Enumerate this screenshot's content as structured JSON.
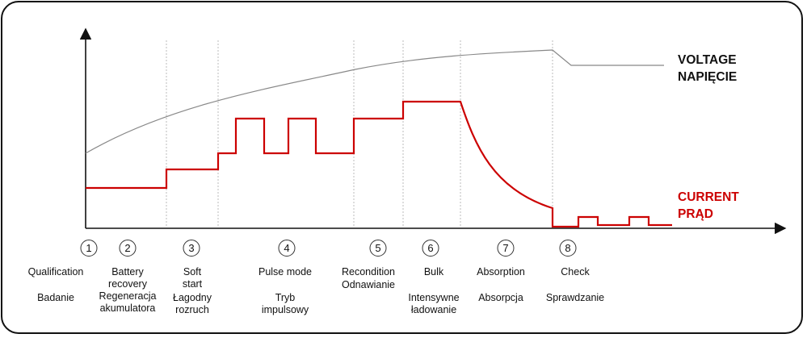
{
  "legend": {
    "voltage": {
      "line1": "VOLTAGE",
      "line2": "NAPIĘCIE",
      "color": "#111111"
    },
    "current": {
      "line1": "CURRENT",
      "line2": "PRĄD",
      "color": "#cc0000"
    }
  },
  "colors": {
    "voltage_curve": "#888888",
    "current_curve": "#cc0000",
    "axis": "#111111",
    "divider": "#bbbbbb"
  },
  "stages": [
    {
      "num": "1",
      "en": "Qualification",
      "pl": "Badanie"
    },
    {
      "num": "2",
      "en": "Battery\nrecovery",
      "pl": "Regeneracja\nakumulatora"
    },
    {
      "num": "3",
      "en": "Soft\nstart",
      "pl": "Łagodny\nrozruch"
    },
    {
      "num": "4",
      "en": "Pulse mode",
      "pl": "Tryb\nimpulsowy"
    },
    {
      "num": "5",
      "en": "Recondition",
      "pl": "Odnawianie"
    },
    {
      "num": "6",
      "en": "Bulk",
      "pl": "Intensywne\nładowanie"
    },
    {
      "num": "7",
      "en": "Absorption",
      "pl": "Absorpcja"
    },
    {
      "num": "8",
      "en": "Check",
      "pl": "Sprawdzanie"
    }
  ]
}
